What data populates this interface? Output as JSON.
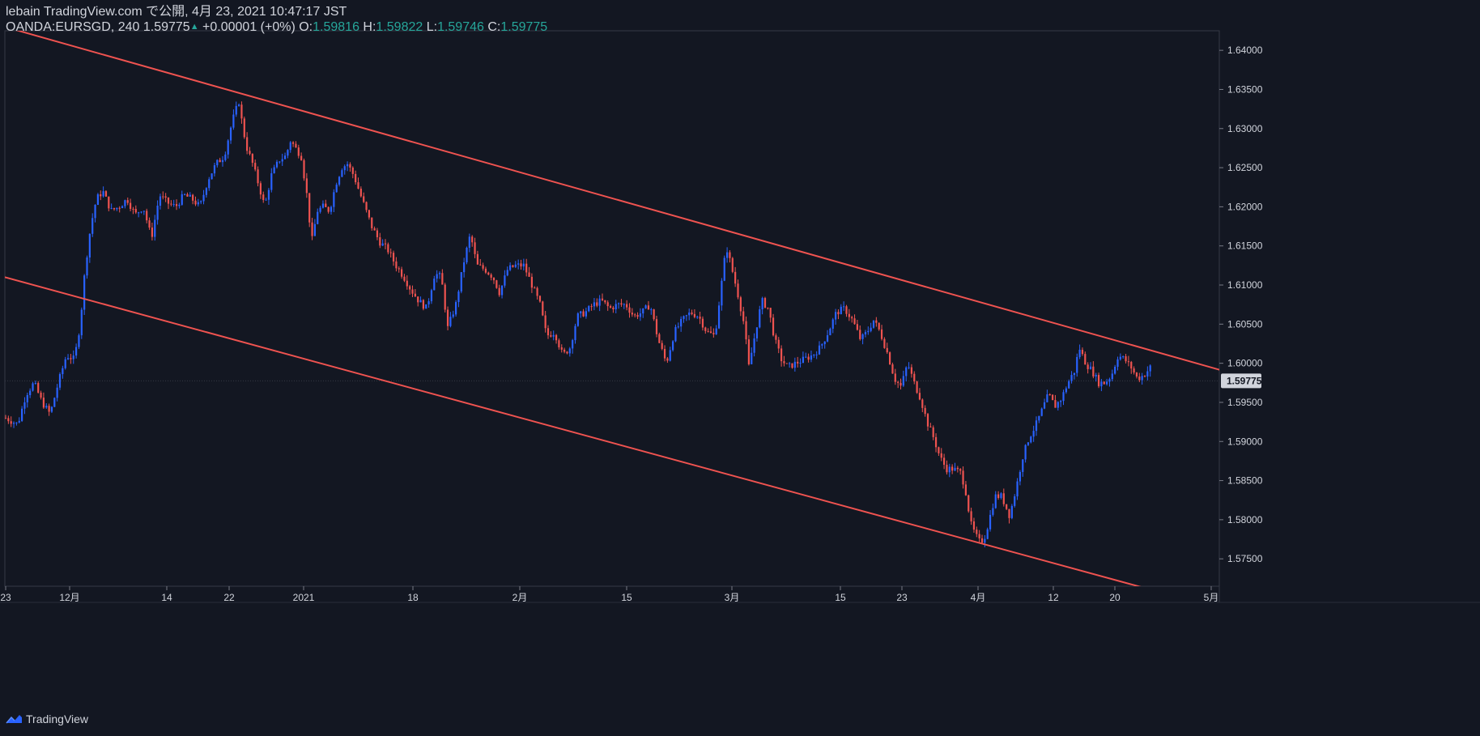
{
  "header": {
    "line1": "lebain TradingView.com で公開, 4月 23, 2021 10:47:17 JST",
    "symbol": "OANDA:EURSGD, 240",
    "last": "1.59775",
    "change": "+0.00001 (+0%)",
    "o_label": "O:",
    "o": "1.59816",
    "h_label": "H:",
    "h": "1.59822",
    "l_label": "L:",
    "l": "1.59746",
    "c_label": "C:",
    "c": "1.59775"
  },
  "footer": {
    "brand": "TradingView"
  },
  "colors": {
    "background": "#131722",
    "up": "#2962ff",
    "down": "#ef5350",
    "channel": "#ef5350",
    "text": "#d1d4dc",
    "last_tag_bg": "#d1d4dc",
    "ohlc": "#26a69a"
  },
  "chart_data": {
    "type": "candlestick",
    "symbol": "OANDA:EURSGD",
    "interval": "240",
    "x_ticks": [
      "23",
      "12月",
      "14",
      "22",
      "2021",
      "18",
      "2月",
      "15",
      "3月",
      "15",
      "23",
      "4月",
      "12",
      "20",
      "5月"
    ],
    "y_ticks": [
      "1.64000",
      "1.63500",
      "1.63000",
      "1.62500",
      "1.62000",
      "1.61500",
      "1.61000",
      "1.60500",
      "1.60000",
      "1.59500",
      "1.59000",
      "1.58500",
      "1.58000",
      "1.57500"
    ],
    "ylim": [
      1.5715,
      1.6425
    ],
    "last_price": "1.59775",
    "price_path": [
      [
        0,
        1.593
      ],
      [
        15,
        1.5922
      ],
      [
        25,
        1.596
      ],
      [
        35,
        1.5975
      ],
      [
        45,
        1.595
      ],
      [
        55,
        1.5935
      ],
      [
        65,
        1.5975
      ],
      [
        75,
        1.601
      ],
      [
        85,
        1.6005
      ],
      [
        92,
        1.605
      ],
      [
        98,
        1.612
      ],
      [
        105,
        1.6175
      ],
      [
        112,
        1.621
      ],
      [
        120,
        1.622
      ],
      [
        130,
        1.6195
      ],
      [
        140,
        1.62
      ],
      [
        150,
        1.621
      ],
      [
        160,
        1.619
      ],
      [
        170,
        1.62
      ],
      [
        180,
        1.616
      ],
      [
        190,
        1.6215
      ],
      [
        200,
        1.6205
      ],
      [
        210,
        1.62
      ],
      [
        220,
        1.6215
      ],
      [
        230,
        1.621
      ],
      [
        240,
        1.62
      ],
      [
        250,
        1.6235
      ],
      [
        260,
        1.6255
      ],
      [
        270,
        1.6265
      ],
      [
        280,
        1.631
      ],
      [
        288,
        1.6335
      ],
      [
        293,
        1.63
      ],
      [
        298,
        1.6275
      ],
      [
        305,
        1.6255
      ],
      [
        312,
        1.623
      ],
      [
        320,
        1.62
      ],
      [
        328,
        1.624
      ],
      [
        338,
        1.626
      ],
      [
        346,
        1.6265
      ],
      [
        352,
        1.6285
      ],
      [
        358,
        1.6275
      ],
      [
        365,
        1.6265
      ],
      [
        372,
        1.6215
      ],
      [
        378,
        1.6155
      ],
      [
        385,
        1.6195
      ],
      [
        392,
        1.62
      ],
      [
        400,
        1.6195
      ],
      [
        408,
        1.623
      ],
      [
        415,
        1.625
      ],
      [
        422,
        1.6255
      ],
      [
        430,
        1.624
      ],
      [
        440,
        1.621
      ],
      [
        452,
        1.6175
      ],
      [
        462,
        1.6155
      ],
      [
        472,
        1.6145
      ],
      [
        482,
        1.6125
      ],
      [
        492,
        1.611
      ],
      [
        500,
        1.6095
      ],
      [
        510,
        1.608
      ],
      [
        520,
        1.607
      ],
      [
        530,
        1.6115
      ],
      [
        538,
        1.611
      ],
      [
        546,
        1.6045
      ],
      [
        556,
        1.6075
      ],
      [
        566,
        1.613
      ],
      [
        574,
        1.6165
      ],
      [
        582,
        1.6125
      ],
      [
        592,
        1.612
      ],
      [
        602,
        1.611
      ],
      [
        610,
        1.609
      ],
      [
        620,
        1.612
      ],
      [
        630,
        1.6125
      ],
      [
        640,
        1.6125
      ],
      [
        650,
        1.61
      ],
      [
        660,
        1.6075
      ],
      [
        668,
        1.6035
      ],
      [
        678,
        1.604
      ],
      [
        688,
        1.601
      ],
      [
        697,
        1.602
      ],
      [
        706,
        1.606
      ],
      [
        716,
        1.6065
      ],
      [
        726,
        1.6075
      ],
      [
        736,
        1.608
      ],
      [
        746,
        1.607
      ],
      [
        756,
        1.6075
      ],
      [
        766,
        1.6075
      ],
      [
        776,
        1.606
      ],
      [
        786,
        1.6065
      ],
      [
        796,
        1.6075
      ],
      [
        806,
        1.603
      ],
      [
        816,
        1.6
      ],
      [
        826,
        1.604
      ],
      [
        836,
        1.6055
      ],
      [
        846,
        1.6065
      ],
      [
        856,
        1.606
      ],
      [
        866,
        1.604
      ],
      [
        876,
        1.6035
      ],
      [
        884,
        1.61
      ],
      [
        890,
        1.615
      ],
      [
        896,
        1.6125
      ],
      [
        904,
        1.609
      ],
      [
        912,
        1.605
      ],
      [
        918,
        1.5995
      ],
      [
        926,
        1.604
      ],
      [
        934,
        1.608
      ],
      [
        942,
        1.607
      ],
      [
        950,
        1.603
      ],
      [
        958,
        1.6005
      ],
      [
        966,
        1.5995
      ],
      [
        976,
        1.6
      ],
      [
        986,
        1.6005
      ],
      [
        996,
        1.601
      ],
      [
        1006,
        1.602
      ],
      [
        1016,
        1.604
      ],
      [
        1026,
        1.6065
      ],
      [
        1036,
        1.607
      ],
      [
        1046,
        1.6055
      ],
      [
        1056,
        1.603
      ],
      [
        1064,
        1.604
      ],
      [
        1072,
        1.6055
      ],
      [
        1080,
        1.604
      ],
      [
        1090,
        1.601
      ],
      [
        1098,
        1.598
      ],
      [
        1106,
        1.597
      ],
      [
        1114,
        1.6
      ],
      [
        1122,
        1.5975
      ],
      [
        1130,
        1.5955
      ],
      [
        1138,
        1.5925
      ],
      [
        1146,
        1.5905
      ],
      [
        1154,
        1.588
      ],
      [
        1162,
        1.5865
      ],
      [
        1170,
        1.5865
      ],
      [
        1180,
        1.586
      ],
      [
        1186,
        1.5835
      ],
      [
        1192,
        1.5795
      ],
      [
        1198,
        1.578
      ],
      [
        1204,
        1.577
      ],
      [
        1210,
        1.578
      ],
      [
        1216,
        1.5805
      ],
      [
        1222,
        1.583
      ],
      [
        1230,
        1.583
      ],
      [
        1240,
        1.5805
      ],
      [
        1248,
        1.584
      ],
      [
        1256,
        1.588
      ],
      [
        1264,
        1.5905
      ],
      [
        1272,
        1.592
      ],
      [
        1280,
        1.594
      ],
      [
        1288,
        1.596
      ],
      [
        1296,
        1.5945
      ],
      [
        1304,
        1.5955
      ],
      [
        1312,
        1.5975
      ],
      [
        1320,
        1.599
      ],
      [
        1326,
        1.602
      ],
      [
        1334,
        1.6
      ],
      [
        1342,
        1.599
      ],
      [
        1350,
        1.5975
      ],
      [
        1358,
        1.5975
      ],
      [
        1366,
        1.5985
      ],
      [
        1374,
        1.601
      ],
      [
        1382,
        1.6005
      ],
      [
        1390,
        1.5995
      ],
      [
        1398,
        1.598
      ],
      [
        1406,
        1.5985
      ],
      [
        1414,
        1.5995
      ],
      [
        1418,
        1.5975
      ],
      [
        1424,
        1.59775
      ]
    ],
    "channel_lines": [
      {
        "x1": 0,
        "y1": 1.643,
        "x2": 1506,
        "y2": 1.599
      },
      {
        "x1": 0,
        "y1": 1.611,
        "x2": 1506,
        "y2": 1.5685
      }
    ]
  }
}
